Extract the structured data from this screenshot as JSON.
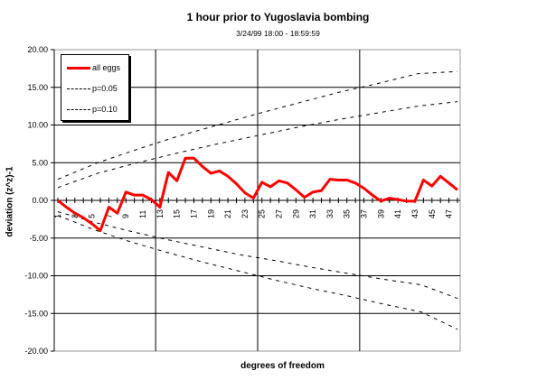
{
  "chart_data": {
    "type": "line",
    "title": "1 hour prior to Yugoslavia bombing",
    "subtitle": "3/24/99 18:00 - 18:59:59",
    "xlabel": "degrees of freedom",
    "ylabel": "deviation (z^z)-1",
    "ylim": [
      -20,
      20
    ],
    "y_ticks": [
      "20.00",
      "15.00",
      "10.00",
      "5.00",
      "0.00",
      "-5.00",
      "-10.00",
      "-15.00",
      "-20.00"
    ],
    "x_tick_labels": [
      "1",
      "3",
      "5",
      "7",
      "9",
      "11",
      "13",
      "15",
      "17",
      "19",
      "21",
      "23",
      "25",
      "27",
      "29",
      "31",
      "33",
      "35",
      "37",
      "39",
      "41",
      "43",
      "45",
      "47"
    ],
    "grid": true,
    "legend_position": "top-left",
    "x": [
      1,
      2,
      3,
      4,
      5,
      6,
      7,
      8,
      9,
      10,
      11,
      12,
      13,
      14,
      15,
      16,
      17,
      18,
      19,
      20,
      21,
      22,
      23,
      24,
      25,
      26,
      27,
      28,
      29,
      30,
      31,
      32,
      33,
      34,
      35,
      36,
      37,
      38,
      39,
      40,
      41,
      42,
      43,
      44,
      45,
      46,
      47,
      48
    ],
    "series": [
      {
        "name": "all eggs",
        "color": "#ff0000",
        "style": "solid",
        "values": [
          0.0,
          -0.9,
          -1.7,
          -2.3,
          -3.1,
          -4.0,
          -0.9,
          -1.7,
          1.1,
          0.7,
          0.7,
          0.1,
          -0.9,
          3.7,
          2.6,
          5.6,
          5.6,
          4.5,
          3.6,
          3.9,
          3.2,
          2.2,
          1.0,
          0.3,
          2.4,
          1.8,
          2.6,
          2.3,
          1.4,
          0.4,
          1.1,
          1.3,
          2.8,
          2.7,
          2.7,
          2.3,
          1.6,
          0.7,
          -0.1,
          0.3,
          0.1,
          -0.1,
          -0.1,
          2.7,
          1.9,
          3.2,
          2.3,
          1.4
        ]
      },
      {
        "name": "p=0.05",
        "color": "#000000",
        "style": "dashed",
        "upper": [
          2.8,
          5.0,
          6.8,
          8.5,
          10.0,
          11.5,
          12.9,
          14.3,
          15.5,
          16.8,
          17.1
        ],
        "lower": [
          -2.0,
          -3.9,
          -5.5,
          -6.9,
          -8.2,
          -9.4,
          -10.6,
          -11.7,
          -12.7,
          -13.8,
          -14.8,
          -17.1
        ]
      },
      {
        "name": "p=0.10",
        "color": "#000000",
        "style": "dashed",
        "upper": [
          1.7,
          3.6,
          5.0,
          6.3,
          7.5,
          8.6,
          9.7,
          10.7,
          11.6,
          12.5,
          13.1
        ],
        "lower": [
          -1.5,
          -2.9,
          -4.1,
          -5.2,
          -6.2,
          -7.2,
          -8.0,
          -8.9,
          -9.7,
          -10.5,
          -11.2,
          -13.0
        ]
      }
    ]
  },
  "legend": {
    "items": [
      "all eggs",
      "p=0.05",
      "p=0.10"
    ]
  }
}
